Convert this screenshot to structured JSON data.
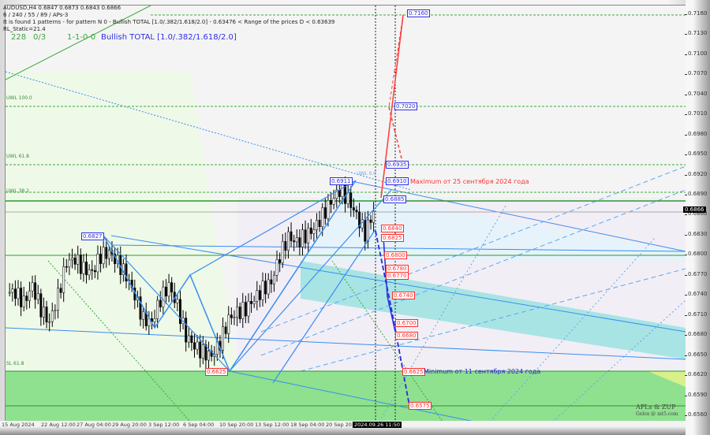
{
  "header": {
    "symbol_line": "AUDUSD,H4  0.6847 0.6873 0.6843 0.6866",
    "params": "6 / 240 / 55 / 89 / APs-3",
    "found_line": "It is found 1 patterns  -  for pattern N 0 - Bullish TOTAL [1.0/.382/1.618/2.0] - 0.63476 < Range of the prices D < 0.63639",
    "rl_static": "RL_Static=21.4",
    "stat1": "228",
    "stat2": "0/3",
    "stat3": "1-1-0-0",
    "pattern_name": "Bullish TOTAL [1.0/.382/1.618/2.0]"
  },
  "current_price": "0.6866",
  "price_axis": [
    "0.7160",
    "0.7130",
    "0.7100",
    "0.7070",
    "0.7040",
    "0.7010",
    "0.6980",
    "0.6950",
    "0.6920",
    "0.6890",
    "0.6860",
    "0.6830",
    "0.6800",
    "0.6770",
    "0.6740",
    "0.6710",
    "0.6680",
    "0.6650",
    "0.6620",
    "0.6590",
    "0.6560"
  ],
  "time_axis": [
    "15 Aug 2024",
    "22 Aug 12:00",
    "27 Aug 04:00",
    "29 Aug 20:00",
    "3 Sep 12:00",
    "6 Sep 04:00",
    "10 Sep 20:00",
    "13 Sep 12:00",
    "18 Sep 04:00",
    "20 Sep 20:"
  ],
  "time_cursor": "2024.09.26 11:50",
  "levels_blue": [
    "0.7160",
    "0.7020",
    "0.6935",
    "0.6910",
    "0.6885",
    "0.6911",
    "0.6827"
  ],
  "levels_red": [
    "0.6840",
    "0.6825",
    "0.6800",
    "0.6780",
    "0.6770",
    "0.6740",
    "0.6700",
    "0.6680",
    "0.6625",
    "0.6575",
    "0.6625"
  ],
  "wl_labels": [
    "UWL 100.0",
    "UWL 61.8",
    "UWL 38.2",
    "SL 61.8",
    "UWL 0.0"
  ],
  "notes": {
    "maximum": "Maximum от 25 сентября 2024 года",
    "minimum": "Minimum от 11 сентября 2024 года"
  },
  "watermark": {
    "line1": "APLs & ZUP",
    "line2": "Gelox @ mt5.com"
  },
  "colors": {
    "bull_zone": "#8fe08f",
    "channel": "#a8e4e4",
    "pattern": "#3a8ef0",
    "red_levels": "#ff2a2a",
    "blue_levels": "#2e2ee6"
  },
  "chart_data": {
    "type": "candlestick",
    "symbol": "AUDUSD",
    "timeframe": "H4",
    "ylim": [
      0.656,
      0.716
    ],
    "last_ohlc": {
      "open": 0.6847,
      "high": 0.6873,
      "low": 0.6843,
      "close": 0.6866
    },
    "approx_closes": [
      0.6745,
      0.673,
      0.6755,
      0.672,
      0.67,
      0.674,
      0.679,
      0.6795,
      0.678,
      0.6775,
      0.68,
      0.6805,
      0.679,
      0.677,
      0.674,
      0.6705,
      0.67,
      0.6735,
      0.6755,
      0.6725,
      0.668,
      0.6665,
      0.6655,
      0.665,
      0.667,
      0.6705,
      0.6715,
      0.672,
      0.6735,
      0.675,
      0.676,
      0.68,
      0.6828,
      0.682,
      0.683,
      0.684,
      0.686,
      0.6881,
      0.6898,
      0.6885,
      0.686,
      0.6833,
      0.6866
    ]
  }
}
